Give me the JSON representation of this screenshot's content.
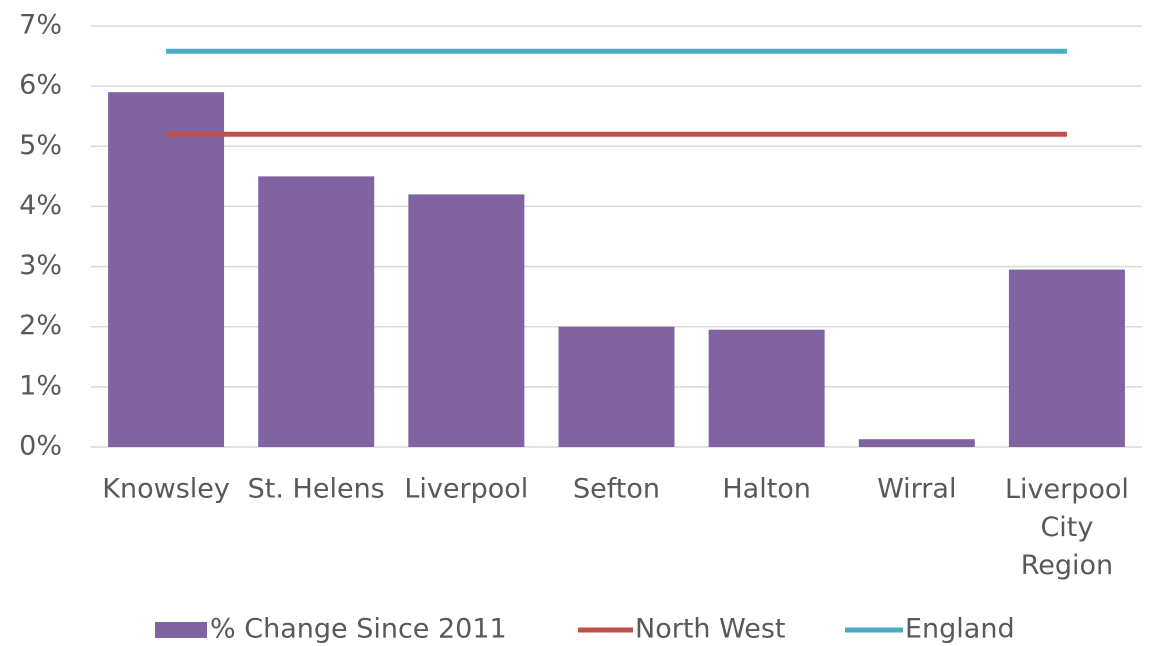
{
  "chart_data": {
    "type": "bar",
    "categories": [
      "Knowsley",
      "St. Helens",
      "Liverpool",
      "Sefton",
      "Halton",
      "Wirral",
      "Liverpool City Region"
    ],
    "series": [
      {
        "name": "% Change Since 2011",
        "type": "bar",
        "color": "#8064a2",
        "values": [
          5.9,
          4.5,
          4.2,
          2.0,
          1.95,
          0.13,
          2.95
        ]
      },
      {
        "name": "North West",
        "type": "line",
        "color": "#c0504d",
        "values": [
          5.2,
          5.2,
          5.2,
          5.2,
          5.2,
          5.2,
          5.2
        ]
      },
      {
        "name": "England",
        "type": "line",
        "color": "#4bacc6",
        "values": [
          6.58,
          6.58,
          6.58,
          6.58,
          6.58,
          6.58,
          6.58
        ]
      }
    ],
    "ylim": [
      0,
      7
    ],
    "yticks": [
      {
        "value": 0,
        "label": "0%"
      },
      {
        "value": 1,
        "label": "1%"
      },
      {
        "value": 2,
        "label": "2%"
      },
      {
        "value": 3,
        "label": "3%"
      },
      {
        "value": 4,
        "label": "4%"
      },
      {
        "value": 5,
        "label": "5%"
      },
      {
        "value": 6,
        "label": "6%"
      },
      {
        "value": 7,
        "label": "7%"
      }
    ],
    "grid": true,
    "legend": "bottom"
  }
}
